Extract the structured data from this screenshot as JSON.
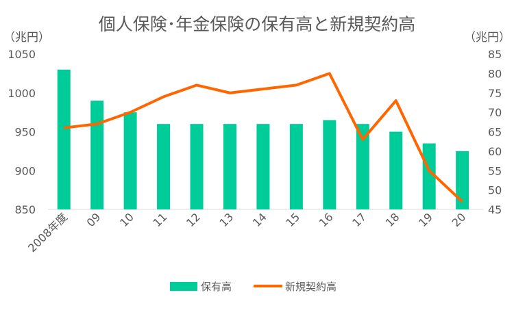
{
  "chart_data": {
    "type": "bar+line",
    "title": "個人保険･年金保険の保有高と新規契約高",
    "left_unit": "（兆円）",
    "right_unit": "（兆円）",
    "categories": [
      "2008年度",
      "09",
      "10",
      "11",
      "12",
      "13",
      "14",
      "15",
      "16",
      "17",
      "18",
      "19",
      "20"
    ],
    "left_axis": {
      "ylim": [
        850,
        1050
      ],
      "ticks": [
        "850",
        "900",
        "950",
        "1000",
        "1050"
      ]
    },
    "right_axis": {
      "ylim": [
        45,
        85
      ],
      "ticks": [
        "45",
        "50",
        "55",
        "60",
        "65",
        "70",
        "75",
        "80",
        "85"
      ]
    },
    "series": [
      {
        "name": "保有高",
        "type": "bar",
        "axis": "left",
        "color": "#00CC99",
        "values": [
          1030,
          990,
          975,
          960,
          960,
          960,
          960,
          960,
          965,
          960,
          950,
          935,
          925
        ]
      },
      {
        "name": "新規契約高",
        "type": "line",
        "axis": "right",
        "color": "#FF6600",
        "values": [
          66,
          67,
          70,
          74,
          77,
          75,
          76,
          77,
          80,
          63,
          73,
          55,
          47
        ]
      }
    ],
    "legend": "bottom"
  }
}
